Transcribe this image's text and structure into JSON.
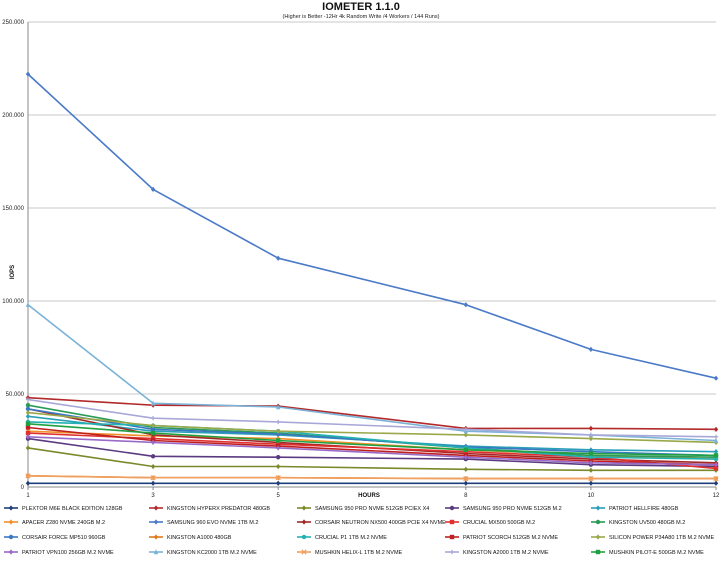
{
  "chart_data": {
    "type": "line",
    "title": "IOMETER 1.1.0",
    "subtitle": "(Higher is Better -12Hr 4k Random Write /4 Workers / 144 Runs)",
    "xlabel": "HOURS",
    "ylabel": "IOPS",
    "x": [
      1,
      3,
      5,
      8,
      10,
      12
    ],
    "x_tick_labels": [
      "1",
      "3",
      "5",
      "8",
      "10",
      "12"
    ],
    "ylim": [
      0,
      250000
    ],
    "y_ticks": [
      0,
      50000,
      100000,
      150000,
      200000,
      250000
    ],
    "y_tick_labels": [
      "0",
      "50.000",
      "100.000",
      "150.000",
      "200.000",
      "250.000"
    ],
    "grid": true,
    "legend_position": "bottom",
    "series": [
      {
        "name": "PLEXTOR M6E BLACK EDITION 128GB",
        "color": "#1f3f7a",
        "marker": "diamond",
        "values": [
          2000,
          2000,
          2000,
          2000,
          2000,
          2000
        ]
      },
      {
        "name": "KINGSTON HYPERX PREDATOR 480GB",
        "color": "#b22a2a",
        "marker": "diamond",
        "values": [
          48000,
          44000,
          43500,
          31500,
          31500,
          31000
        ]
      },
      {
        "name": "SAMSUNG 950 PRO NVME 512GB PCIEX X4",
        "color": "#7a8a2a",
        "marker": "diamond",
        "values": [
          21000,
          11000,
          11000,
          9500,
          9000,
          9000
        ]
      },
      {
        "name": "SAMSUNG 950 PRO NVME 512GB M.2",
        "color": "#5a3a80",
        "marker": "circle",
        "values": [
          26000,
          16500,
          16000,
          15000,
          12000,
          11000
        ]
      },
      {
        "name": "PATRIOT HELLFIRE 480GB",
        "color": "#2a9fb8",
        "marker": "diamond",
        "values": [
          38000,
          30000,
          28000,
          22000,
          20000,
          19000
        ]
      },
      {
        "name": "APACER Z280 NVME 240GB M.2",
        "color": "#f0902a",
        "marker": "diamond",
        "values": [
          30000,
          27500,
          26000,
          20000,
          17000,
          15000
        ]
      },
      {
        "name": "SAMSUNG 960 EVO NVME 1TB M.2",
        "color": "#4a7ac8",
        "marker": "diamond",
        "values": [
          222000,
          160000,
          123000,
          98000,
          74000,
          58500
        ]
      },
      {
        "name": "CORSAIR NEUTRON NX500 400GB PCIE X4 NVME",
        "color": "#a02828",
        "marker": "diamond",
        "values": [
          42000,
          28000,
          24000,
          18000,
          15000,
          13000
        ]
      },
      {
        "name": "CRUCIAL MX500 500GB M.2",
        "color": "#e03030",
        "marker": "square",
        "values": [
          29000,
          26000,
          23000,
          19000,
          16000,
          10000
        ]
      },
      {
        "name": "KINGSTON UV500 480GB M.2",
        "color": "#2a9a55",
        "marker": "circle",
        "values": [
          44000,
          32000,
          29000,
          21000,
          17000,
          16000
        ]
      },
      {
        "name": "CORSAIR FORCE MP510 960GB",
        "color": "#3b78c4",
        "marker": "circle",
        "values": [
          42000,
          31000,
          28500,
          21500,
          19000,
          17000
        ]
      },
      {
        "name": "KINGSTON A1000 480GB",
        "color": "#e07a1a",
        "marker": "diamond",
        "values": [
          6000,
          5000,
          5000,
          4500,
          4500,
          4500
        ]
      },
      {
        "name": "CRUCIAL P1 1TB M.2 NVME",
        "color": "#22b2b2",
        "marker": "circle",
        "values": [
          35000,
          33000,
          30000,
          21000,
          16000,
          15000
        ]
      },
      {
        "name": "PATRIOT SCORCH 512GB M.2 NVME",
        "color": "#c02020",
        "marker": "square",
        "values": [
          32000,
          25000,
          22000,
          17000,
          14000,
          12000
        ]
      },
      {
        "name": "SILICON POWER P34A80 1TB M.2 NVME",
        "color": "#9aa84a",
        "marker": "diamond",
        "values": [
          40000,
          33000,
          30000,
          28000,
          26000,
          24000
        ]
      },
      {
        "name": "PATRIOT VPN100 256GB M.2 NVME",
        "color": "#9a6ac8",
        "marker": "diamond",
        "values": [
          27000,
          24000,
          21000,
          16000,
          13000,
          12000
        ]
      },
      {
        "name": "KINGSTON KC2000 1TB M.2 NVME",
        "color": "#7ab2d8",
        "marker": "triangle",
        "values": [
          98000,
          45000,
          43000,
          30000,
          28000,
          25000
        ]
      },
      {
        "name": "MUSHKIN HELIX-L 1TB M.2 NVME",
        "color": "#f0a060",
        "marker": "cross",
        "values": [
          6000,
          5000,
          5000,
          4500,
          4500,
          4500
        ]
      },
      {
        "name": "KINGSTON A2000 1TB M.2 NVME",
        "color": "#a8a8d8",
        "marker": "plus",
        "values": [
          47000,
          37000,
          35000,
          31000,
          28000,
          27000
        ]
      },
      {
        "name": "MUSHKIN PILOT-E 500GB M.2 NVME",
        "color": "#20a040",
        "marker": "square",
        "values": [
          34000,
          29000,
          25000,
          20000,
          18000,
          17000
        ]
      }
    ]
  }
}
